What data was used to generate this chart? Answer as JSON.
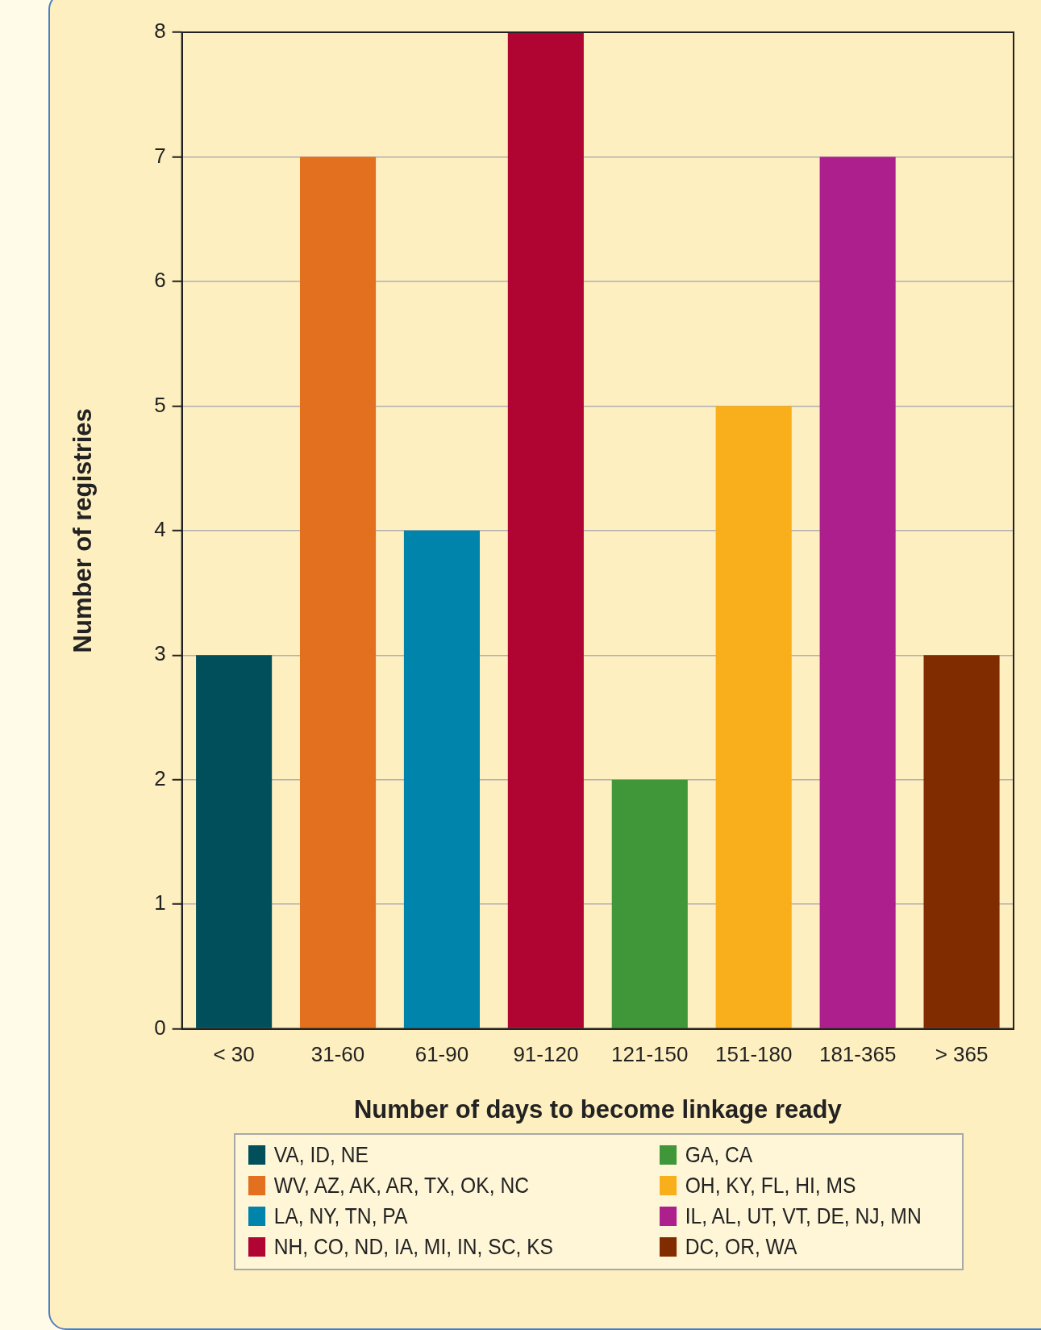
{
  "chart_data": {
    "type": "bar",
    "xlabel": "Number of days to become linkage ready",
    "ylabel": "Number of registries",
    "categories": [
      "< 30",
      "31-60",
      "61-90",
      "91-120",
      "121-150",
      "151-180",
      "181-365",
      "> 365"
    ],
    "series": [
      {
        "name": "VA, ID, NE",
        "color": "#004f5a",
        "values": [
          3,
          null,
          null,
          null,
          null,
          null,
          null,
          null
        ]
      },
      {
        "name": "WV, AZ, AK, AR, TX, OK, NC",
        "color": "#e2701f",
        "values": [
          null,
          7,
          null,
          null,
          null,
          null,
          null,
          null
        ]
      },
      {
        "name": "LA, NY, TN, PA",
        "color": "#0084ab",
        "values": [
          null,
          null,
          4,
          null,
          null,
          null,
          null,
          null
        ]
      },
      {
        "name": "NH, CO, ND, IA, MI, IN, SC, KS",
        "color": "#b00433",
        "values": [
          null,
          null,
          null,
          8,
          null,
          null,
          null,
          null
        ]
      },
      {
        "name": "GA, CA",
        "color": "#3f973a",
        "values": [
          null,
          null,
          null,
          null,
          2,
          null,
          null,
          null
        ]
      },
      {
        "name": "OH, KY, FL, HI, MS",
        "color": "#f9ae1b",
        "values": [
          null,
          null,
          null,
          null,
          null,
          5,
          null,
          null
        ]
      },
      {
        "name": "IL, AL, UT, VT, DE, NJ, MN",
        "color": "#ae1f8e",
        "values": [
          null,
          null,
          null,
          null,
          null,
          null,
          7,
          null
        ]
      },
      {
        "name": "DC, OR, WA",
        "color": "#812c00",
        "values": [
          null,
          null,
          null,
          null,
          null,
          null,
          null,
          3
        ]
      }
    ],
    "ylim": [
      0,
      8
    ],
    "yticks": [
      0,
      1,
      2,
      3,
      4,
      5,
      6,
      7,
      8
    ],
    "grid": "y",
    "legend": "bottom"
  }
}
